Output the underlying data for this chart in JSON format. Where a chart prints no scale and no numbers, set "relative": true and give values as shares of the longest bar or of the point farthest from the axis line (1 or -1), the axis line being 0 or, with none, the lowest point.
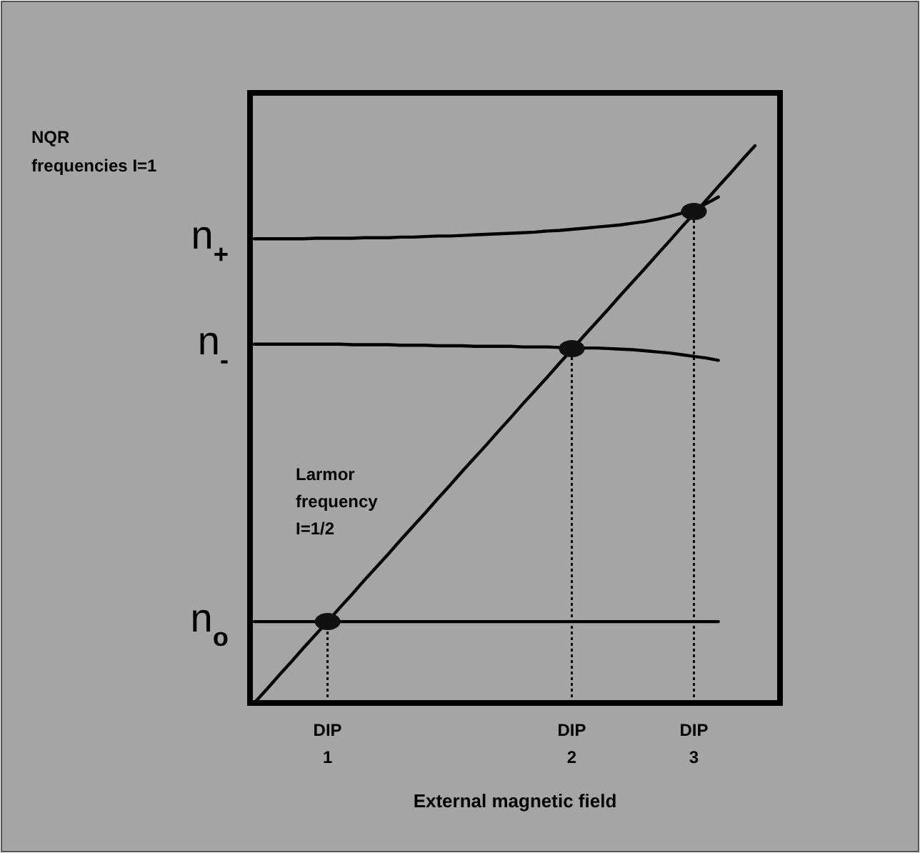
{
  "chart_data": {
    "type": "line",
    "relative": true,
    "xlabel": "External magnetic field",
    "line_style": "solid",
    "categories": [
      null,
      null,
      null,
      null,
      null,
      null,
      "DIP\n1",
      null,
      null,
      null,
      null,
      null,
      null,
      null,
      null,
      null,
      null,
      null,
      null,
      null,
      null,
      null,
      null,
      null,
      null,
      null,
      "DIP\n2",
      null,
      null,
      null,
      null,
      null,
      null,
      null,
      null,
      null,
      "DIP\n3",
      null,
      null,
      null,
      null,
      null
    ],
    "series": [
      {
        "color": "#000000",
        "values": [
          0,
          0.024,
          0.049,
          0.073,
          0.098,
          0.122,
          0.146,
          0.171,
          0.195,
          0.22,
          0.244,
          0.268,
          0.293,
          0.317,
          0.341,
          0.366,
          0.39,
          0.415,
          0.439,
          0.463,
          0.488,
          0.512,
          0.537,
          0.561,
          0.585,
          0.61,
          0.634,
          0.659,
          0.683,
          0.707,
          0.732,
          0.756,
          0.78,
          0.805,
          0.829,
          0.854,
          0.878,
          0.902,
          0.927,
          0.951,
          0.976,
          1
        ]
      },
      {
        "color": "#000000",
        "values": [
          0.146,
          0.146,
          0.146,
          0.146,
          0.146,
          0.146,
          0.146,
          0.146,
          0.146,
          0.146,
          0.146,
          0.146,
          0.146,
          0.146,
          0.146,
          0.146,
          0.146,
          0.146,
          0.146,
          0.146,
          0.146,
          0.146,
          0.146,
          0.146,
          0.146,
          0.146,
          0.146,
          0.146,
          0.146,
          0.146,
          0.146,
          0.146,
          0.146,
          0.146,
          0.146,
          0.146,
          0.146,
          0.146,
          0.146,
          null,
          null,
          null
        ]
      },
      {
        "color": "#000000",
        "values": [
          0.644,
          0.644,
          0.644,
          0.644,
          0.644,
          0.644,
          0.644,
          0.644,
          0.643,
          0.643,
          0.643,
          0.643,
          0.642,
          0.642,
          0.642,
          0.641,
          0.641,
          0.641,
          0.64,
          0.64,
          0.64,
          0.64,
          0.639,
          0.639,
          0.639,
          0.638,
          0.638,
          0.637,
          0.637,
          0.636,
          0.635,
          0.634,
          0.632,
          0.63,
          0.628,
          0.625,
          0.622,
          0.619,
          0.615,
          null,
          null,
          null
        ]
      },
      {
        "color": "#000000",
        "values": [
          0.833,
          0.833,
          0.833,
          0.833,
          0.833,
          0.834,
          0.834,
          0.834,
          0.834,
          0.835,
          0.835,
          0.835,
          0.836,
          0.836,
          0.837,
          0.838,
          0.838,
          0.839,
          0.84,
          0.841,
          0.842,
          0.843,
          0.844,
          0.845,
          0.847,
          0.848,
          0.85,
          0.852,
          0.854,
          0.856,
          0.858,
          0.861,
          0.864,
          0.868,
          0.873,
          0.879,
          0.885,
          0.896,
          0.908,
          null,
          null,
          null
        ]
      },
      {
        "type": "scatter",
        "marker": "circle",
        "color": "#111111",
        "values": [
          null,
          null,
          null,
          null,
          null,
          null,
          0.146,
          null,
          null,
          null,
          null,
          null,
          null,
          null,
          null,
          null,
          null,
          null,
          null,
          null,
          null,
          null,
          null,
          null,
          null,
          null,
          0.636,
          null,
          null,
          null,
          null,
          null,
          null,
          null,
          null,
          null,
          0.882,
          null,
          null,
          null,
          null,
          null
        ]
      }
    ],
    "annotations": [
      "NQR\nfrequencies I=1",
      "n$_{+}$",
      "n$_{-}$",
      "n$_{o}$",
      "Larmor\nfrequency\nI=1/2"
    ]
  }
}
